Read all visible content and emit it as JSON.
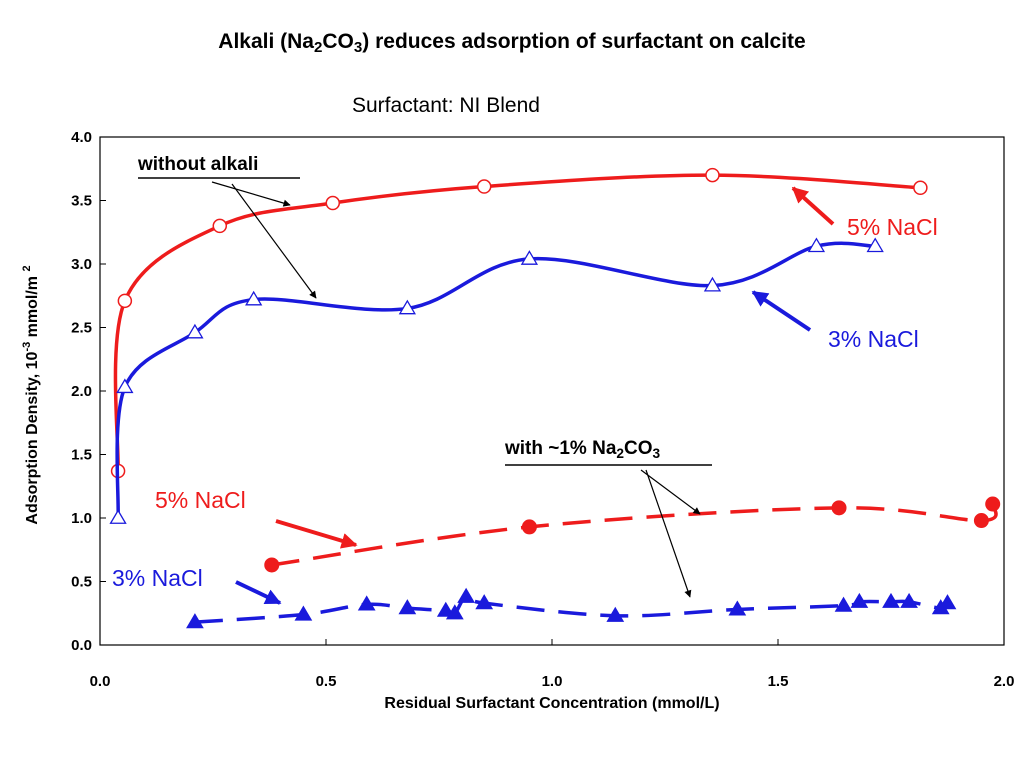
{
  "title": {
    "pre": "Alkali (Na",
    "sub1": "2",
    "mid": "CO",
    "sub2": "3",
    "post": ") reduces adsorption of surfactant on calcite"
  },
  "subtitle": "Surfactant: NI Blend",
  "annotations": {
    "without_alkali": "without alkali",
    "with_alkali": {
      "pre": "with ~1% Na",
      "sub1": "2",
      "mid": "CO",
      "sub2": "3"
    },
    "upper_5": "5% NaCl",
    "upper_3": "3% NaCl",
    "lower_5": "5% NaCl",
    "lower_3": "3% NaCl"
  },
  "colors": {
    "red": "#ee1c1c",
    "blue": "#1a1adc"
  },
  "chart_data": {
    "type": "line",
    "title": "Alkali (Na2CO3) reduces adsorption of surfactant on calcite",
    "subtitle": "Surfactant: NI Blend",
    "xlabel": "Residual Surfactant Concentration (mmol/L)",
    "ylabel": {
      "pre": "Adsorption Density, 10",
      "exp1": "-3",
      "mid": " mmol/m",
      "exp2": "2"
    },
    "xlim": [
      0,
      2
    ],
    "ylim": [
      0,
      4
    ],
    "x_ticks": [
      0,
      0.5,
      1,
      1.5,
      2
    ],
    "x_tick_labels": [
      "0.0",
      "0.5",
      "1.0",
      "1.5",
      "2.0"
    ],
    "y_ticks": [
      0,
      0.5,
      1,
      1.5,
      2,
      2.5,
      3,
      3.5,
      4
    ],
    "y_tick_labels": [
      "0.0",
      "0.5",
      "1.0",
      "1.5",
      "2.0",
      "2.5",
      "3.0",
      "3.5",
      "4.0"
    ],
    "grid": false,
    "legend": "none",
    "series": [
      {
        "name": "5% NaCl",
        "color": "#ee1c1c",
        "marker": "open-circle",
        "line": "solid",
        "x": [
          0.04,
          0.055,
          0.265,
          0.515,
          0.85,
          1.355,
          1.815
        ],
        "y": [
          1.37,
          2.71,
          3.3,
          3.48,
          3.61,
          3.7,
          3.6
        ]
      },
      {
        "name": "3% NaCl",
        "color": "#1a1adc",
        "marker": "open-triangle",
        "line": "solid",
        "x": [
          0.04,
          0.055,
          0.21,
          0.34,
          0.68,
          0.95,
          1.355,
          1.585,
          1.715
        ],
        "y": [
          1.0,
          2.03,
          2.46,
          2.72,
          2.65,
          3.04,
          2.83,
          3.14,
          3.14
        ]
      },
      {
        "name": "5% NaCl",
        "color": "#ee1c1c",
        "marker": "filled-circle",
        "line": "dashed",
        "x": [
          0.38,
          0.95,
          1.635,
          1.95,
          1.975
        ],
        "y": [
          0.63,
          0.93,
          1.08,
          0.98,
          1.11
        ]
      },
      {
        "name": "3% NaCl",
        "color": "#1a1adc",
        "marker": "filled-triangle",
        "line": "dashed",
        "x": [
          0.21,
          0.45,
          0.59,
          0.68,
          0.765,
          0.785,
          0.81,
          0.85,
          1.14,
          1.41,
          1.645,
          1.68,
          1.75,
          1.79,
          1.86,
          1.875
        ],
        "y": [
          0.18,
          0.24,
          0.32,
          0.29,
          0.27,
          0.25,
          0.38,
          0.33,
          0.23,
          0.28,
          0.31,
          0.34,
          0.34,
          0.34,
          0.29,
          0.33
        ]
      }
    ]
  }
}
